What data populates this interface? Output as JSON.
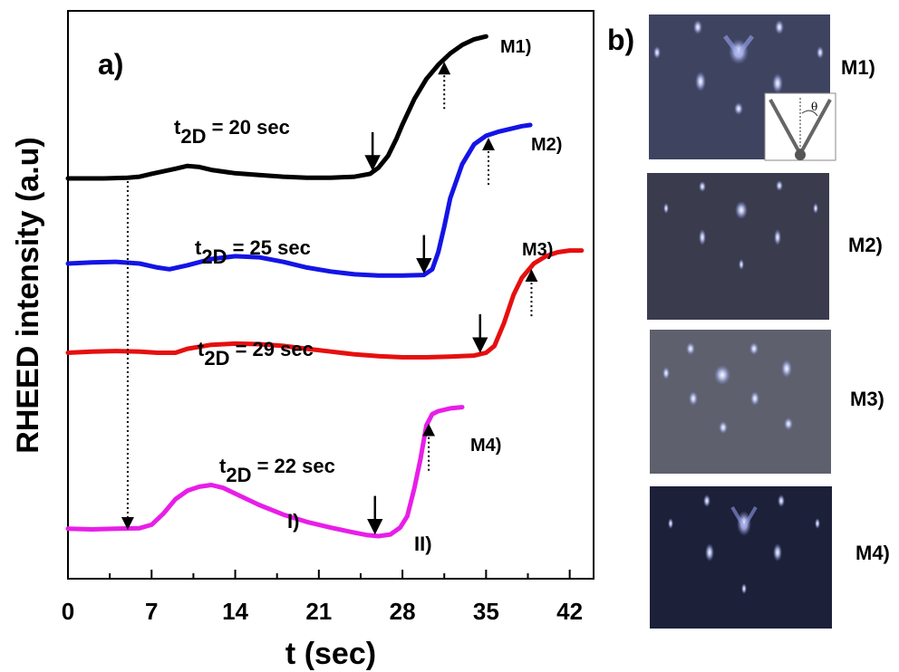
{
  "chart_data": {
    "type": "line",
    "panel_label": "a)",
    "xlabel": "t (sec)",
    "ylabel": "RHEED intensity (a.u)",
    "xlim": [
      0,
      44
    ],
    "xticks": [
      0,
      7,
      14,
      21,
      28,
      35,
      42
    ],
    "series": [
      {
        "name": "M1)",
        "color": "#000000",
        "annotation": "t2D = 20 sec",
        "t_down": 25.5,
        "t_up": 31.5,
        "points": [
          [
            0,
            0.705
          ],
          [
            3,
            0.705
          ],
          [
            5,
            0.706
          ],
          [
            6,
            0.708
          ],
          [
            7,
            0.713
          ],
          [
            9,
            0.722
          ],
          [
            10,
            0.727
          ],
          [
            11,
            0.725
          ],
          [
            12,
            0.72
          ],
          [
            14,
            0.714
          ],
          [
            16,
            0.711
          ],
          [
            18,
            0.708
          ],
          [
            20,
            0.706
          ],
          [
            22,
            0.706
          ],
          [
            24,
            0.708
          ],
          [
            25.3,
            0.713
          ],
          [
            26,
            0.724
          ],
          [
            26.8,
            0.745
          ],
          [
            27.5,
            0.775
          ],
          [
            28,
            0.8
          ],
          [
            29,
            0.845
          ],
          [
            30,
            0.88
          ],
          [
            31,
            0.905
          ],
          [
            32,
            0.925
          ],
          [
            33,
            0.94
          ],
          [
            34,
            0.95
          ],
          [
            35,
            0.955
          ]
        ]
      },
      {
        "name": "M2)",
        "color": "#1414e6",
        "annotation": "t2D = 25 sec",
        "t_down": 29.8,
        "t_up": 35.2,
        "points": [
          [
            0,
            0.555
          ],
          [
            2,
            0.557
          ],
          [
            4,
            0.558
          ],
          [
            6,
            0.555
          ],
          [
            7.5,
            0.548
          ],
          [
            8.5,
            0.545
          ],
          [
            10,
            0.552
          ],
          [
            12,
            0.563
          ],
          [
            14,
            0.568
          ],
          [
            16,
            0.566
          ],
          [
            18,
            0.558
          ],
          [
            20,
            0.548
          ],
          [
            22,
            0.541
          ],
          [
            24,
            0.536
          ],
          [
            26,
            0.534
          ],
          [
            28,
            0.534
          ],
          [
            29.8,
            0.535
          ],
          [
            30.5,
            0.545
          ],
          [
            31,
            0.575
          ],
          [
            31.5,
            0.62
          ],
          [
            32,
            0.67
          ],
          [
            33,
            0.73
          ],
          [
            34,
            0.765
          ],
          [
            35,
            0.78
          ],
          [
            36,
            0.787
          ],
          [
            37,
            0.792
          ],
          [
            38,
            0.797
          ],
          [
            38.7,
            0.799
          ]
        ]
      },
      {
        "name": "M3)",
        "color": "#e60f0f",
        "annotation": "t2D = 29 sec",
        "t_down": 34.5,
        "t_up": 38.8,
        "points": [
          [
            0,
            0.398
          ],
          [
            2,
            0.4
          ],
          [
            4,
            0.401
          ],
          [
            6,
            0.4
          ],
          [
            7.5,
            0.398
          ],
          [
            9,
            0.398
          ],
          [
            10,
            0.405
          ],
          [
            12,
            0.412
          ],
          [
            14,
            0.414
          ],
          [
            16,
            0.413
          ],
          [
            18,
            0.41
          ],
          [
            20,
            0.405
          ],
          [
            22,
            0.4
          ],
          [
            24,
            0.395
          ],
          [
            26,
            0.392
          ],
          [
            28,
            0.39
          ],
          [
            30,
            0.39
          ],
          [
            32,
            0.391
          ],
          [
            34,
            0.393
          ],
          [
            35,
            0.398
          ],
          [
            35.7,
            0.41
          ],
          [
            36.5,
            0.45
          ],
          [
            37.3,
            0.5
          ],
          [
            38,
            0.53
          ],
          [
            39,
            0.555
          ],
          [
            40,
            0.568
          ],
          [
            41,
            0.575
          ],
          [
            42,
            0.578
          ],
          [
            43,
            0.578
          ]
        ]
      },
      {
        "name": "M4)",
        "color": "#e81ee8",
        "annotation": "t2D = 22 sec",
        "t_down": 25.7,
        "t_up": 30.2,
        "points": [
          [
            0,
            0.088
          ],
          [
            2,
            0.087
          ],
          [
            4,
            0.088
          ],
          [
            6,
            0.089
          ],
          [
            7,
            0.095
          ],
          [
            8,
            0.115
          ],
          [
            9,
            0.14
          ],
          [
            10,
            0.155
          ],
          [
            11,
            0.162
          ],
          [
            12,
            0.165
          ],
          [
            13,
            0.16
          ],
          [
            14,
            0.15
          ],
          [
            16,
            0.13
          ],
          [
            18,
            0.113
          ],
          [
            20,
            0.1
          ],
          [
            22,
            0.09
          ],
          [
            24,
            0.081
          ],
          [
            25,
            0.077
          ],
          [
            26,
            0.075
          ],
          [
            27,
            0.078
          ],
          [
            27.8,
            0.09
          ],
          [
            28.4,
            0.11
          ],
          [
            29,
            0.16
          ],
          [
            29.5,
            0.21
          ],
          [
            30,
            0.27
          ],
          [
            30.5,
            0.29
          ],
          [
            31,
            0.295
          ],
          [
            32,
            0.3
          ],
          [
            33,
            0.302
          ]
        ]
      }
    ],
    "region_labels": [
      "I)",
      "II)"
    ],
    "dotted_arrow_t": 5
  },
  "panel_b": {
    "label": "b)",
    "images": [
      {
        "label": "M1)",
        "inset_symbol": "θ"
      },
      {
        "label": "M2)"
      },
      {
        "label": "M3)"
      },
      {
        "label": "M4)"
      }
    ]
  },
  "colors": {
    "M1": "#000000",
    "M2": "#1414e6",
    "M3": "#e60f0f",
    "M4": "#e81ee8"
  }
}
